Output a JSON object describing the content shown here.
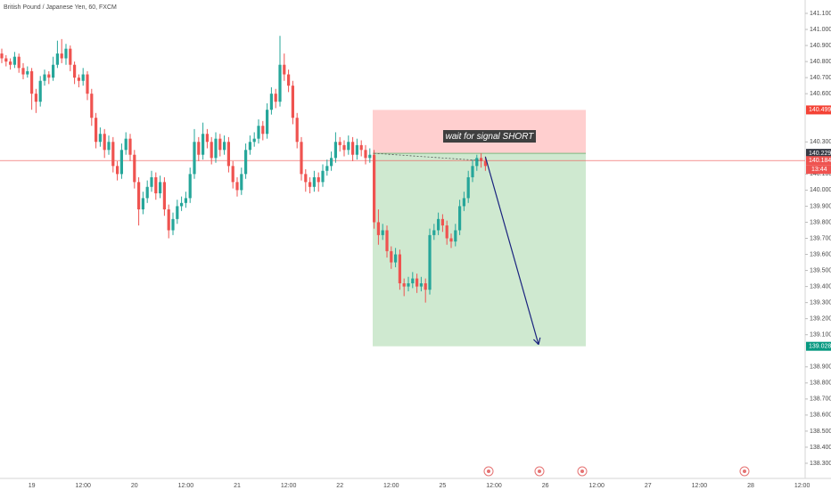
{
  "chart_data": {
    "type": "candlestick",
    "title": "British Pound / Japanese Yen, 60, FXCM",
    "up_color": "#26a69a",
    "down_color": "#ef5350",
    "ylim": [
      138.3,
      141.1
    ],
    "yticks": [
      {
        "value": 141.1,
        "label": "141.100"
      },
      {
        "value": 141.0,
        "label": "141.000"
      },
      {
        "value": 140.9,
        "label": "140.900"
      },
      {
        "value": 140.8,
        "label": "140.800"
      },
      {
        "value": 140.7,
        "label": "140.700"
      },
      {
        "value": 140.6,
        "label": "140.600"
      },
      {
        "value": 140.3,
        "label": "140.300"
      },
      {
        "value": 140.1,
        "label": "140.100"
      },
      {
        "value": 140.0,
        "label": "140.000"
      },
      {
        "value": 139.9,
        "label": "139.900"
      },
      {
        "value": 139.8,
        "label": "139.800"
      },
      {
        "value": 139.7,
        "label": "139.700"
      },
      {
        "value": 139.6,
        "label": "139.600"
      },
      {
        "value": 139.5,
        "label": "139.500"
      },
      {
        "value": 139.4,
        "label": "139.400"
      },
      {
        "value": 139.3,
        "label": "139.300"
      },
      {
        "value": 139.2,
        "label": "139.200"
      },
      {
        "value": 139.1,
        "label": "139.100"
      },
      {
        "value": 138.9,
        "label": "138.900"
      },
      {
        "value": 138.8,
        "label": "138.800"
      },
      {
        "value": 138.7,
        "label": "138.700"
      },
      {
        "value": 138.6,
        "label": "138.600"
      },
      {
        "value": 138.5,
        "label": "138.500"
      },
      {
        "value": 138.4,
        "label": "138.400"
      },
      {
        "value": 138.3,
        "label": "138.300"
      }
    ],
    "x_labels": [
      "19",
      "12:00",
      "20",
      "12:00",
      "21",
      "12:00",
      "22",
      "12:00",
      "25",
      "12:00",
      "26",
      "12:00",
      "27",
      "12:00",
      "28",
      "12:00"
    ],
    "stop": {
      "value": 140.499,
      "label": "140.499"
    },
    "entry": {
      "value": 140.229,
      "label": "140.229"
    },
    "target": {
      "value": 139.028,
      "label": "139.028"
    },
    "last_price": {
      "value": 140.184,
      "label": "140.184"
    },
    "countdown": "13:44",
    "annotation": "wait for signal SHORT",
    "candles": [
      [
        140.85,
        140.88,
        140.79,
        140.82
      ],
      [
        140.82,
        140.84,
        140.77,
        140.8
      ],
      [
        140.8,
        140.82,
        140.75,
        140.78
      ],
      [
        140.78,
        140.86,
        140.76,
        140.83
      ],
      [
        140.83,
        140.85,
        140.73,
        140.76
      ],
      [
        140.76,
        140.79,
        140.69,
        140.72
      ],
      [
        140.72,
        140.77,
        140.7,
        140.74
      ],
      [
        140.74,
        140.76,
        140.5,
        140.6
      ],
      [
        140.6,
        140.63,
        140.48,
        140.55
      ],
      [
        140.55,
        140.71,
        140.52,
        140.68
      ],
      [
        140.68,
        140.75,
        140.65,
        140.72
      ],
      [
        140.72,
        140.74,
        140.66,
        140.7
      ],
      [
        140.7,
        140.83,
        140.68,
        140.78
      ],
      [
        140.78,
        140.93,
        140.76,
        140.85
      ],
      [
        140.85,
        140.94,
        140.79,
        140.82
      ],
      [
        140.82,
        140.91,
        140.78,
        140.88
      ],
      [
        140.88,
        140.9,
        140.74,
        140.78
      ],
      [
        140.78,
        140.8,
        140.66,
        140.7
      ],
      [
        140.7,
        140.72,
        140.64,
        140.68
      ],
      [
        140.68,
        140.76,
        140.65,
        140.72
      ],
      [
        140.72,
        140.74,
        140.56,
        140.6
      ],
      [
        140.6,
        140.63,
        140.4,
        140.45
      ],
      [
        140.45,
        140.48,
        140.26,
        140.3
      ],
      [
        140.3,
        140.39,
        140.27,
        140.35
      ],
      [
        140.35,
        140.38,
        140.2,
        140.25
      ],
      [
        140.25,
        140.34,
        140.22,
        140.3
      ],
      [
        140.3,
        140.33,
        140.11,
        140.15
      ],
      [
        140.15,
        140.18,
        140.06,
        140.1
      ],
      [
        140.1,
        140.29,
        140.07,
        140.25
      ],
      [
        140.25,
        140.36,
        140.22,
        140.32
      ],
      [
        140.32,
        140.35,
        140.18,
        140.22
      ],
      [
        140.22,
        140.25,
        140.01,
        140.05
      ],
      [
        140.05,
        140.08,
        139.78,
        139.88
      ],
      [
        139.88,
        139.99,
        139.85,
        139.95
      ],
      [
        139.95,
        140.06,
        139.92,
        140.02
      ],
      [
        140.02,
        140.12,
        139.99,
        140.08
      ],
      [
        140.08,
        140.11,
        139.94,
        139.98
      ],
      [
        139.98,
        140.09,
        139.95,
        140.05
      ],
      [
        140.05,
        140.08,
        139.84,
        139.88
      ],
      [
        139.88,
        139.91,
        139.7,
        139.75
      ],
      [
        139.75,
        139.86,
        139.72,
        139.82
      ],
      [
        139.82,
        139.94,
        139.79,
        139.9
      ],
      [
        139.9,
        139.96,
        139.87,
        139.92
      ],
      [
        139.92,
        139.99,
        139.89,
        139.95
      ],
      [
        139.95,
        140.14,
        139.92,
        140.1
      ],
      [
        140.1,
        140.38,
        140.07,
        140.3
      ],
      [
        140.3,
        140.33,
        140.18,
        140.22
      ],
      [
        140.22,
        140.42,
        140.19,
        140.35
      ],
      [
        140.35,
        140.38,
        140.26,
        140.3
      ],
      [
        140.3,
        140.33,
        140.16,
        140.2
      ],
      [
        140.2,
        140.36,
        140.17,
        140.32
      ],
      [
        140.32,
        140.35,
        140.21,
        140.25
      ],
      [
        140.25,
        140.34,
        140.22,
        140.3
      ],
      [
        140.3,
        140.33,
        140.11,
        140.15
      ],
      [
        140.15,
        140.18,
        140.01,
        140.05
      ],
      [
        140.05,
        140.08,
        139.96,
        140.0
      ],
      [
        140.0,
        140.14,
        139.97,
        140.1
      ],
      [
        140.1,
        140.29,
        140.07,
        140.25
      ],
      [
        140.25,
        140.34,
        140.22,
        140.3
      ],
      [
        140.3,
        140.36,
        140.27,
        140.32
      ],
      [
        140.32,
        140.44,
        140.29,
        140.4
      ],
      [
        140.4,
        140.43,
        140.31,
        140.35
      ],
      [
        140.35,
        140.54,
        140.32,
        140.5
      ],
      [
        140.5,
        140.64,
        140.47,
        140.6
      ],
      [
        140.6,
        140.63,
        140.51,
        140.55
      ],
      [
        140.55,
        140.96,
        140.52,
        140.78
      ],
      [
        140.78,
        140.85,
        140.68,
        140.72
      ],
      [
        140.72,
        140.75,
        140.61,
        140.65
      ],
      [
        140.65,
        140.68,
        140.41,
        140.45
      ],
      [
        140.45,
        140.48,
        140.26,
        140.3
      ],
      [
        140.3,
        140.33,
        140.06,
        140.1
      ],
      [
        140.1,
        140.13,
        139.99,
        140.05
      ],
      [
        140.05,
        140.08,
        139.98,
        140.02
      ],
      [
        140.02,
        140.12,
        139.99,
        140.08
      ],
      [
        140.08,
        140.11,
        139.99,
        140.05
      ],
      [
        140.05,
        140.16,
        140.02,
        140.12
      ],
      [
        140.12,
        140.19,
        140.09,
        140.15
      ],
      [
        140.15,
        140.24,
        140.12,
        140.2
      ],
      [
        140.2,
        140.36,
        140.17,
        140.3
      ],
      [
        140.3,
        140.33,
        140.24,
        140.28
      ],
      [
        140.28,
        140.31,
        140.21,
        140.25
      ],
      [
        140.25,
        140.34,
        140.22,
        140.3
      ],
      [
        140.3,
        140.33,
        140.18,
        140.22
      ],
      [
        140.22,
        140.32,
        140.19,
        140.28
      ],
      [
        140.28,
        140.31,
        140.21,
        140.25
      ],
      [
        140.25,
        140.28,
        140.16,
        140.2
      ],
      [
        140.2,
        140.26,
        140.17,
        140.22
      ],
      [
        140.22,
        140.25,
        139.76,
        139.8
      ],
      [
        139.8,
        139.88,
        139.66,
        139.72
      ],
      [
        139.72,
        139.79,
        139.69,
        139.75
      ],
      [
        139.75,
        139.78,
        139.58,
        139.62
      ],
      [
        139.62,
        139.65,
        139.51,
        139.55
      ],
      [
        139.55,
        139.64,
        139.52,
        139.6
      ],
      [
        139.6,
        139.63,
        139.38,
        139.42
      ],
      [
        139.42,
        139.45,
        139.34,
        139.4
      ],
      [
        139.4,
        139.46,
        139.37,
        139.42
      ],
      [
        139.42,
        139.49,
        139.39,
        139.45
      ],
      [
        139.45,
        139.48,
        139.36,
        139.4
      ],
      [
        139.4,
        139.46,
        139.37,
        139.42
      ],
      [
        139.42,
        139.45,
        139.3,
        139.38
      ],
      [
        139.38,
        139.76,
        139.35,
        139.72
      ],
      [
        139.72,
        139.79,
        139.69,
        139.75
      ],
      [
        139.75,
        139.86,
        139.72,
        139.82
      ],
      [
        139.82,
        139.85,
        139.74,
        139.78
      ],
      [
        139.78,
        139.81,
        139.66,
        139.7
      ],
      [
        139.7,
        139.73,
        139.64,
        139.68
      ],
      [
        139.68,
        139.79,
        139.65,
        139.75
      ],
      [
        139.75,
        139.94,
        139.72,
        139.9
      ],
      [
        139.9,
        139.99,
        139.87,
        139.95
      ],
      [
        139.95,
        140.12,
        139.92,
        140.08
      ],
      [
        140.08,
        140.19,
        140.05,
        140.15
      ],
      [
        140.15,
        140.22,
        140.12,
        140.2
      ],
      [
        140.2,
        140.23,
        140.14,
        140.18
      ],
      [
        140.18,
        140.21,
        140.12,
        140.15
      ]
    ]
  }
}
